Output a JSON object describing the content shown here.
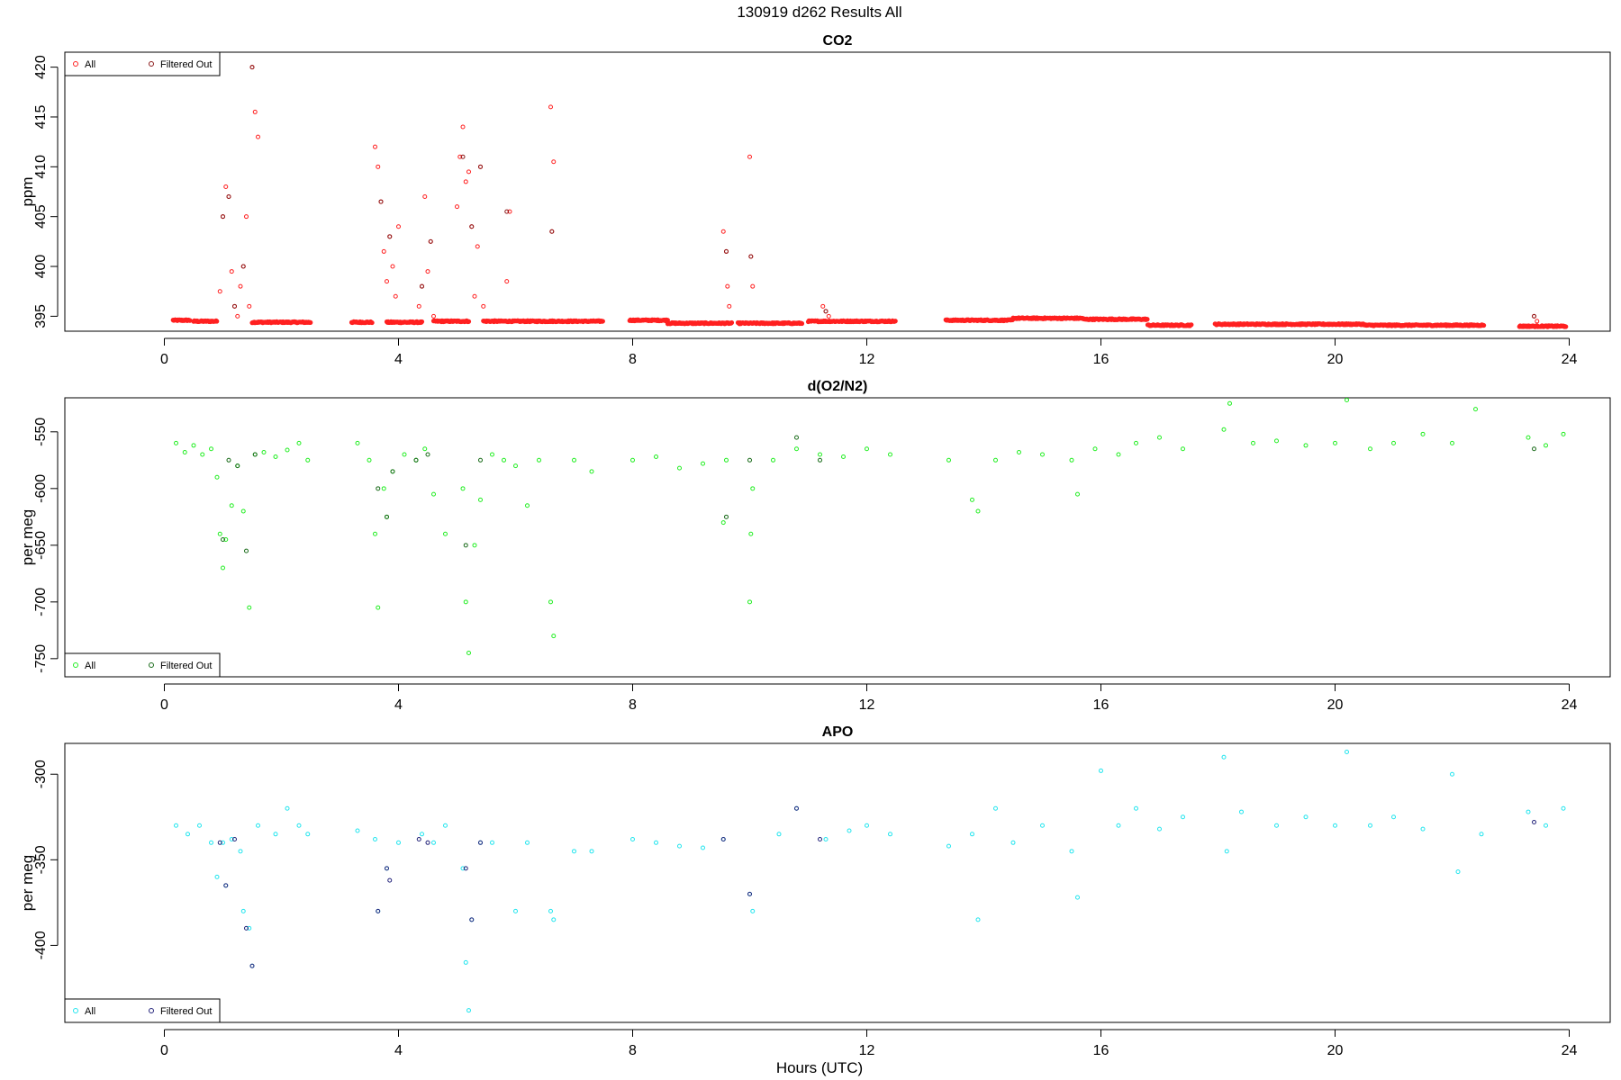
{
  "figure": {
    "title": "130919   d262   Results All",
    "xlabel": "Hours (UTC)"
  },
  "colors": {
    "co2_all": "#ff2020",
    "co2_filtered": "#8b1a1a",
    "o2_all": "#22ee22",
    "o2_filtered": "#1a6b1a",
    "apo_all": "#22e5ee",
    "apo_filtered": "#23237a"
  },
  "chart_data": [
    {
      "type": "scatter",
      "title": "CO2",
      "xlabel": "",
      "ylabel": "ppm",
      "xlim": [
        -1.7,
        24.7
      ],
      "ylim": [
        393.5,
        421.5
      ],
      "xticks": [
        0,
        4,
        8,
        12,
        16,
        20,
        24
      ],
      "yticks": [
        395,
        400,
        405,
        410,
        415,
        420
      ],
      "legend": {
        "placement": "top-left",
        "entries": [
          "All",
          "Filtered Out"
        ]
      },
      "baseline": [
        {
          "range": [
            0.15,
            0.45
          ],
          "y": 394.6
        },
        {
          "range": [
            0.5,
            0.9
          ],
          "y": 394.5
        },
        {
          "range": [
            1.5,
            2.5
          ],
          "y": 394.4
        },
        {
          "range": [
            3.2,
            3.55
          ],
          "y": 394.4
        },
        {
          "range": [
            3.8,
            4.4
          ],
          "y": 394.4
        },
        {
          "range": [
            4.6,
            5.2
          ],
          "y": 394.5
        },
        {
          "range": [
            5.45,
            7.5
          ],
          "y": 394.5
        },
        {
          "range": [
            7.95,
            8.6
          ],
          "y": 394.6
        },
        {
          "range": [
            8.6,
            9.7
          ],
          "y": 394.3
        },
        {
          "range": [
            9.8,
            10.9
          ],
          "y": 394.3
        },
        {
          "range": [
            11.0,
            12.5
          ],
          "y": 394.5
        },
        {
          "range": [
            13.35,
            14.5
          ],
          "y": 394.6
        },
        {
          "range": [
            14.5,
            15.7
          ],
          "y": 394.8
        },
        {
          "range": [
            15.7,
            16.8
          ],
          "y": 394.7
        },
        {
          "range": [
            16.8,
            17.55
          ],
          "y": 394.1
        },
        {
          "range": [
            17.95,
            20.5
          ],
          "y": 394.2
        },
        {
          "range": [
            20.5,
            22.55
          ],
          "y": 394.1
        },
        {
          "range": [
            23.15,
            23.95
          ],
          "y": 394.0
        }
      ],
      "series": [
        {
          "name": "All",
          "x": [
            0.95,
            1.0,
            1.05,
            1.1,
            1.15,
            1.2,
            1.25,
            1.3,
            1.35,
            1.4,
            1.45,
            1.5,
            1.55,
            1.6,
            3.6,
            3.65,
            3.7,
            3.75,
            3.8,
            3.85,
            3.9,
            3.95,
            4.0,
            4.35,
            4.4,
            4.45,
            4.5,
            4.55,
            4.6,
            5.0,
            5.05,
            5.1,
            5.15,
            5.2,
            5.25,
            5.3,
            5.35,
            5.4,
            5.45,
            5.85,
            5.9,
            6.6,
            6.62,
            6.65,
            9.55,
            9.6,
            9.62,
            9.65,
            10.0,
            10.02,
            10.05,
            11.25,
            11.3,
            11.35,
            23.4,
            23.45
          ],
          "y": [
            397.5,
            405,
            408,
            407,
            399.5,
            396,
            395,
            398,
            400,
            405,
            396,
            420,
            415.5,
            413,
            412,
            410,
            406.5,
            401.5,
            398.5,
            403,
            400,
            397,
            404,
            396,
            398,
            407,
            399.5,
            402.5,
            395,
            406,
            411,
            414,
            408.5,
            409.5,
            404,
            397,
            402,
            410,
            396,
            398.5,
            405.5,
            416,
            403.5,
            410.5,
            403.5,
            401.5,
            398,
            396,
            411,
            401,
            398,
            396,
            395.5,
            395,
            395,
            394.5
          ]
        },
        {
          "name": "Filtered Out",
          "x": [
            1.0,
            1.1,
            1.2,
            1.35,
            1.5,
            3.7,
            3.85,
            4.4,
            4.55,
            5.1,
            5.25,
            5.4,
            5.85,
            6.62,
            9.6,
            10.02,
            11.3,
            23.4
          ],
          "y": [
            405,
            407,
            396,
            400,
            420,
            406.5,
            403,
            398,
            402.5,
            411,
            404,
            410,
            405.5,
            403.5,
            401.5,
            401,
            395.5,
            395
          ]
        }
      ]
    },
    {
      "type": "scatter",
      "title": "d(O2/N2)",
      "xlabel": "",
      "ylabel": "per meg",
      "xlim": [
        -1.7,
        24.7
      ],
      "ylim": [
        -766,
        -520
      ],
      "xticks": [
        0,
        4,
        8,
        12,
        16,
        20,
        24
      ],
      "yticks": [
        -550,
        -600,
        -650,
        -700,
        -750
      ],
      "legend": {
        "placement": "bottom-left",
        "entries": [
          "All",
          "Filtered Out"
        ]
      },
      "series": [
        {
          "name": "All",
          "x": [
            0.2,
            0.35,
            0.5,
            0.65,
            0.8,
            0.9,
            0.95,
            1.0,
            1.05,
            1.15,
            1.25,
            1.35,
            1.45,
            1.55,
            1.7,
            1.9,
            2.1,
            2.3,
            2.45,
            3.3,
            3.5,
            3.6,
            3.65,
            3.75,
            3.8,
            3.9,
            4.1,
            4.3,
            4.45,
            4.6,
            4.8,
            5.1,
            5.15,
            5.2,
            5.3,
            5.4,
            5.6,
            5.8,
            6.0,
            6.2,
            6.4,
            6.6,
            6.65,
            7.0,
            7.3,
            8.0,
            8.4,
            8.8,
            9.2,
            9.55,
            9.6,
            10.0,
            10.02,
            10.05,
            10.4,
            10.8,
            11.2,
            11.6,
            12.0,
            12.4,
            13.4,
            13.8,
            13.9,
            14.2,
            14.6,
            15.0,
            15.5,
            15.6,
            15.9,
            16.3,
            16.6,
            17.0,
            17.4,
            18.1,
            18.2,
            18.6,
            19.0,
            19.5,
            20.0,
            20.2,
            20.6,
            21.0,
            21.5,
            22.0,
            22.4,
            23.3,
            23.6,
            23.9
          ],
          "y": [
            -560,
            -568,
            -562,
            -570,
            -565,
            -590,
            -640,
            -670,
            -645,
            -615,
            -580,
            -620,
            -705,
            -570,
            -568,
            -572,
            -566,
            -560,
            -575,
            -560,
            -575,
            -640,
            -705,
            -600,
            -625,
            -585,
            -570,
            -575,
            -565,
            -605,
            -640,
            -600,
            -700,
            -745,
            -650,
            -610,
            -570,
            -575,
            -580,
            -615,
            -575,
            -700,
            -730,
            -575,
            -585,
            -575,
            -572,
            -582,
            -578,
            -630,
            -575,
            -700,
            -640,
            -600,
            -575,
            -565,
            -570,
            -572,
            -565,
            -570,
            -575,
            -610,
            -620,
            -575,
            -568,
            -570,
            -575,
            -605,
            -565,
            -570,
            -560,
            -555,
            -565,
            -548,
            -525,
            -560,
            -558,
            -562,
            -560,
            -522,
            -565,
            -560,
            -552,
            -560,
            -530,
            -555,
            -562,
            -552
          ]
        },
        {
          "name": "Filtered Out",
          "x": [
            1.0,
            1.1,
            1.25,
            1.4,
            1.55,
            3.65,
            3.8,
            3.9,
            4.3,
            4.5,
            5.15,
            5.4,
            9.6,
            10.0,
            10.8,
            11.2,
            23.4
          ],
          "y": [
            -645,
            -575,
            -580,
            -655,
            -570,
            -600,
            -625,
            -585,
            -575,
            -570,
            -650,
            -575,
            -625,
            -575,
            -555,
            -575,
            -565
          ]
        }
      ]
    },
    {
      "type": "scatter",
      "title": "APO",
      "xlabel": "Hours (UTC)",
      "ylabel": "per meg",
      "xlim": [
        -1.7,
        24.7
      ],
      "ylim": [
        -445,
        -282
      ],
      "xticks": [
        0,
        4,
        8,
        12,
        16,
        20,
        24
      ],
      "yticks": [
        -300,
        -350,
        -400
      ],
      "legend": {
        "placement": "bottom-left",
        "entries": [
          "All",
          "Filtered Out"
        ]
      },
      "series": [
        {
          "name": "All",
          "x": [
            0.2,
            0.4,
            0.6,
            0.8,
            0.9,
            1.0,
            1.05,
            1.15,
            1.3,
            1.35,
            1.45,
            1.5,
            1.6,
            1.9,
            2.1,
            2.3,
            2.45,
            3.3,
            3.6,
            3.65,
            3.8,
            4.0,
            4.4,
            4.6,
            4.8,
            5.1,
            5.15,
            5.2,
            5.25,
            5.4,
            5.6,
            6.0,
            6.2,
            6.6,
            6.65,
            7.0,
            7.3,
            8.0,
            8.4,
            8.8,
            9.2,
            9.55,
            10.0,
            10.05,
            10.5,
            10.8,
            11.3,
            11.7,
            12.0,
            12.4,
            13.4,
            13.8,
            13.9,
            14.2,
            14.5,
            15.0,
            15.5,
            15.6,
            16.0,
            16.3,
            16.6,
            17.0,
            17.4,
            18.1,
            18.15,
            18.4,
            19.0,
            19.5,
            20.0,
            20.2,
            20.6,
            21.0,
            21.5,
            22.0,
            22.1,
            22.5,
            23.3,
            23.6,
            23.9
          ],
          "y": [
            -330,
            -335,
            -330,
            -340,
            -360,
            -340,
            -365,
            -338,
            -345,
            -380,
            -390,
            -412,
            -330,
            -335,
            -320,
            -330,
            -335,
            -333,
            -338,
            -380,
            -355,
            -340,
            -335,
            -340,
            -330,
            -355,
            -410,
            -438,
            -385,
            -340,
            -340,
            -380,
            -340,
            -380,
            -385,
            -345,
            -345,
            -338,
            -340,
            -342,
            -343,
            -338,
            -370,
            -380,
            -335,
            -320,
            -338,
            -333,
            -330,
            -335,
            -342,
            -335,
            -385,
            -320,
            -340,
            -330,
            -345,
            -372,
            -298,
            -330,
            -320,
            -332,
            -325,
            -290,
            -345,
            -322,
            -330,
            -325,
            -330,
            -287,
            -330,
            -325,
            -332,
            -300,
            -357,
            -335,
            -322,
            -330,
            -320
          ]
        },
        {
          "name": "Filtered Out",
          "x": [
            0.95,
            1.05,
            1.2,
            1.4,
            1.5,
            3.65,
            3.8,
            3.85,
            4.35,
            4.5,
            5.15,
            5.25,
            5.4,
            9.55,
            10.0,
            10.8,
            11.2,
            23.4
          ],
          "y": [
            -340,
            -365,
            -338,
            -390,
            -412,
            -380,
            -355,
            -362,
            -338,
            -340,
            -355,
            -385,
            -340,
            -338,
            -370,
            -320,
            -338,
            -328
          ]
        }
      ]
    }
  ]
}
